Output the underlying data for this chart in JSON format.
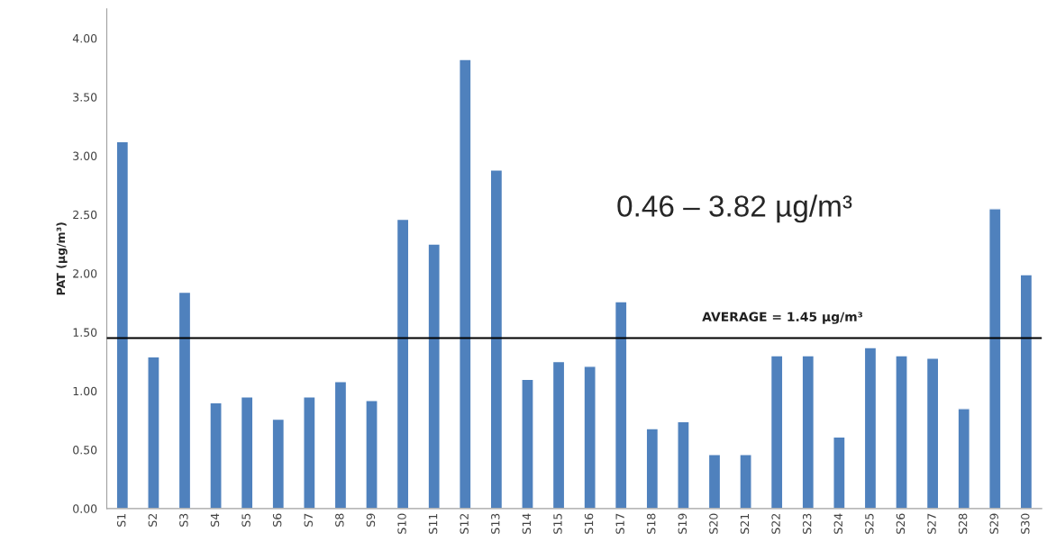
{
  "chart_data": {
    "type": "bar",
    "ylabel": "PAT (µg/m³)",
    "categories": [
      "S1",
      "S2",
      "S3",
      "S4",
      "S5",
      "S6",
      "S7",
      "S8",
      "S9",
      "S10",
      "S11",
      "S12",
      "S13",
      "S14",
      "S15",
      "S16",
      "S17",
      "S18",
      "S19",
      "S20",
      "S21",
      "S22",
      "S23",
      "S24",
      "S25",
      "S26",
      "S27",
      "S28",
      "S29",
      "S30"
    ],
    "values": [
      3.12,
      1.29,
      1.84,
      0.9,
      0.95,
      0.76,
      0.95,
      1.08,
      0.92,
      2.46,
      2.25,
      3.82,
      2.88,
      1.1,
      1.25,
      1.21,
      1.76,
      0.68,
      0.74,
      0.46,
      0.46,
      1.3,
      1.3,
      0.61,
      1.37,
      1.3,
      1.28,
      0.85,
      2.55,
      1.99
    ],
    "color": "#4f81bd",
    "ylim": [
      0,
      4.25
    ],
    "yticks": [
      {
        "value": 0,
        "label": "0.00"
      },
      {
        "value": 0.5,
        "label": "0.50"
      },
      {
        "value": 1,
        "label": "1.00"
      },
      {
        "value": 1.5,
        "label": "1.50"
      },
      {
        "value": 2,
        "label": "2.00"
      },
      {
        "value": 2.5,
        "label": "2.50"
      },
      {
        "value": 3,
        "label": "3.00"
      },
      {
        "value": 3.5,
        "label": "3.50"
      },
      {
        "value": 4,
        "label": "4.00"
      }
    ],
    "ref_lines": [
      {
        "axis": "y",
        "value": 1.45,
        "label": "AVERAGE = 1.45 µg/m³",
        "color": "#000000"
      }
    ],
    "annotations": [
      "0.46 – 3.82 µg/m³"
    ],
    "grid": false,
    "legend": false
  }
}
